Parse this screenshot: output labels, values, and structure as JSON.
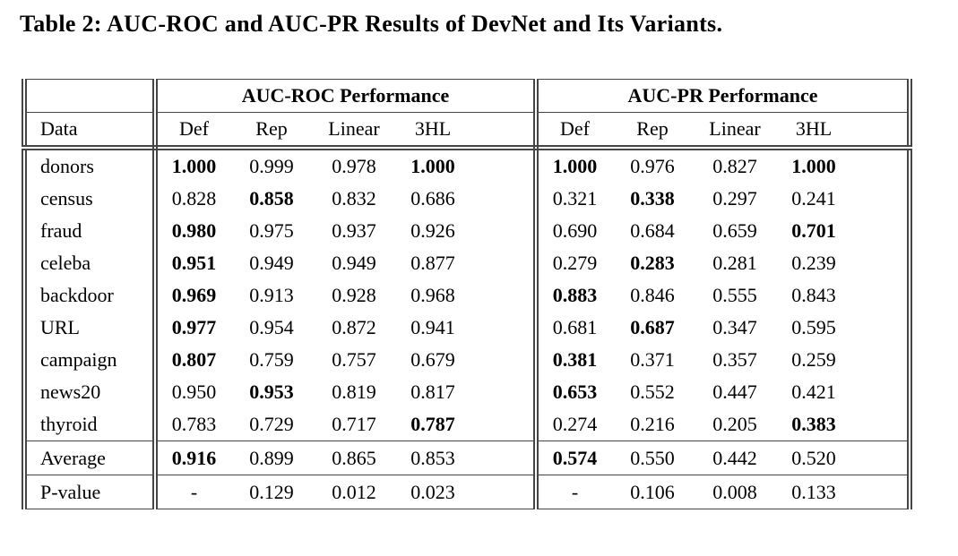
{
  "title": "Table 2: AUC-ROC and AUC-PR Results of DevNet and Its Variants.",
  "colors": {
    "background": "#ffffff",
    "text": "#000000",
    "rule": "#454545"
  },
  "table": {
    "group_headers": [
      "AUC-ROC Performance",
      "AUC-PR Performance"
    ],
    "data_column_header": "Data",
    "sub_headers": [
      "Def",
      "Rep",
      "Linear",
      "3HL"
    ],
    "rows": [
      {
        "label": "donors",
        "values": [
          "1.000",
          "0.999",
          "0.978",
          "1.000",
          "1.000",
          "0.976",
          "0.827",
          "1.000"
        ],
        "bold": [
          1,
          0,
          0,
          1,
          1,
          0,
          0,
          1
        ]
      },
      {
        "label": "census",
        "values": [
          "0.828",
          "0.858",
          "0.832",
          "0.686",
          "0.321",
          "0.338",
          "0.297",
          "0.241"
        ],
        "bold": [
          0,
          1,
          0,
          0,
          0,
          1,
          0,
          0
        ]
      },
      {
        "label": "fraud",
        "values": [
          "0.980",
          "0.975",
          "0.937",
          "0.926",
          "0.690",
          "0.684",
          "0.659",
          "0.701"
        ],
        "bold": [
          1,
          0,
          0,
          0,
          0,
          0,
          0,
          1
        ]
      },
      {
        "label": "celeba",
        "values": [
          "0.951",
          "0.949",
          "0.949",
          "0.877",
          "0.279",
          "0.283",
          "0.281",
          "0.239"
        ],
        "bold": [
          1,
          0,
          0,
          0,
          0,
          1,
          0,
          0
        ]
      },
      {
        "label": "backdoor",
        "values": [
          "0.969",
          "0.913",
          "0.928",
          "0.968",
          "0.883",
          "0.846",
          "0.555",
          "0.843"
        ],
        "bold": [
          1,
          0,
          0,
          0,
          1,
          0,
          0,
          0
        ]
      },
      {
        "label": "URL",
        "values": [
          "0.977",
          "0.954",
          "0.872",
          "0.941",
          "0.681",
          "0.687",
          "0.347",
          "0.595"
        ],
        "bold": [
          1,
          0,
          0,
          0,
          0,
          1,
          0,
          0
        ]
      },
      {
        "label": "campaign",
        "values": [
          "0.807",
          "0.759",
          "0.757",
          "0.679",
          "0.381",
          "0.371",
          "0.357",
          "0.259"
        ],
        "bold": [
          1,
          0,
          0,
          0,
          1,
          0,
          0,
          0
        ]
      },
      {
        "label": "news20",
        "values": [
          "0.950",
          "0.953",
          "0.819",
          "0.817",
          "0.653",
          "0.552",
          "0.447",
          "0.421"
        ],
        "bold": [
          0,
          1,
          0,
          0,
          1,
          0,
          0,
          0
        ]
      },
      {
        "label": "thyroid",
        "values": [
          "0.783",
          "0.729",
          "0.717",
          "0.787",
          "0.274",
          "0.216",
          "0.205",
          "0.383"
        ],
        "bold": [
          0,
          0,
          0,
          1,
          0,
          0,
          0,
          1
        ]
      }
    ],
    "summary_rows": [
      {
        "label": "Average",
        "values": [
          "0.916",
          "0.899",
          "0.865",
          "0.853",
          "0.574",
          "0.550",
          "0.442",
          "0.520"
        ],
        "bold": [
          1,
          0,
          0,
          0,
          1,
          0,
          0,
          0
        ]
      },
      {
        "label": "P-value",
        "values": [
          "-",
          "0.129",
          "0.012",
          "0.023",
          "-",
          "0.106",
          "0.008",
          "0.133"
        ],
        "bold": [
          0,
          0,
          0,
          0,
          0,
          0,
          0,
          0
        ]
      }
    ]
  }
}
